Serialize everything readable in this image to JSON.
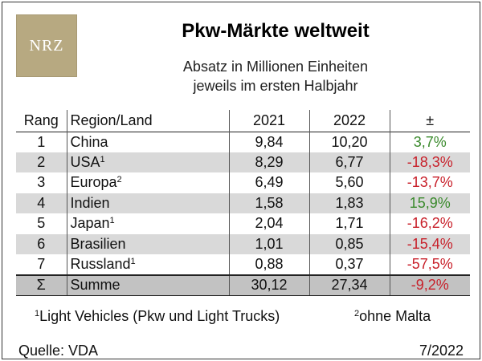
{
  "logo": {
    "text": "NRZ"
  },
  "title": "Pkw-Märkte weltweit",
  "subtitle": {
    "line1": "Absatz in Millionen Einheiten",
    "line2": "jeweils im ersten Halbjahr"
  },
  "table": {
    "headers": {
      "rank": "Rang",
      "region": "Region/Land",
      "year1": "2021",
      "year2": "2022",
      "change": "±"
    },
    "rows": [
      {
        "rank": "1",
        "region": "China",
        "sup": "",
        "y2021": "9,84",
        "y2022": "10,20",
        "change": "3,7%",
        "trend": "pos"
      },
      {
        "rank": "2",
        "region": "USA",
        "sup": "1",
        "y2021": "8,29",
        "y2022": "6,77",
        "change": "-18,3%",
        "trend": "neg"
      },
      {
        "rank": "3",
        "region": "Europa",
        "sup": "2",
        "y2021": "6,49",
        "y2022": "5,60",
        "change": "-13,7%",
        "trend": "neg"
      },
      {
        "rank": "4",
        "region": "Indien",
        "sup": "",
        "y2021": "1,58",
        "y2022": "1,83",
        "change": "15,9%",
        "trend": "pos"
      },
      {
        "rank": "5",
        "region": "Japan",
        "sup": "1",
        "y2021": "2,04",
        "y2022": "1,71",
        "change": "-16,2%",
        "trend": "neg"
      },
      {
        "rank": "6",
        "region": "Brasilien",
        "sup": "",
        "y2021": "1,01",
        "y2022": "0,85",
        "change": "-15,4%",
        "trend": "neg"
      },
      {
        "rank": "7",
        "region": "Russland",
        "sup": "1",
        "y2021": "0,88",
        "y2022": "0,37",
        "change": "-57,5%",
        "trend": "neg"
      }
    ],
    "total": {
      "rank": "Σ",
      "region": "Summe",
      "y2021": "30,12",
      "y2022": "27,34",
      "change": "-9,2%",
      "trend": "neg"
    }
  },
  "footnotes": {
    "fn1_mark": "1",
    "fn1_text": "Light Vehicles (Pkw und Light Trucks)",
    "fn2_mark": "2",
    "fn2_text": "ohne Malta"
  },
  "source": "Quelle: VDA",
  "date": "7/2022",
  "colors": {
    "positive": "#3a8a2c",
    "negative": "#c8202a",
    "row_shade": "#d9d9d9",
    "total_shade": "#c2c2c2",
    "logo_bg": "#b7a981"
  }
}
